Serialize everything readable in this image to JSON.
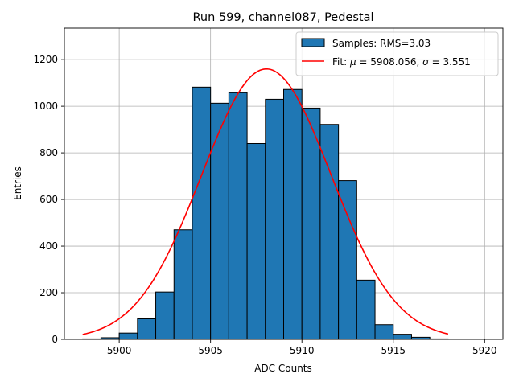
{
  "chart_data": {
    "type": "bar",
    "title": "Run 599, channel087, Pedestal",
    "xlabel": "ADC Counts",
    "ylabel": "Entries",
    "xlim": [
      5897.0,
      5921.0
    ],
    "ylim": [
      0,
      1335
    ],
    "xticks": [
      5900,
      5905,
      5910,
      5915,
      5920
    ],
    "yticks": [
      0,
      200,
      400,
      600,
      800,
      1000,
      1200
    ],
    "grid": true,
    "legend_position": "upper-right",
    "histogram": {
      "name": "Samples: RMS=3.03",
      "color": "#1f77b4",
      "bin_edges": [
        5898,
        5899,
        5900,
        5901,
        5902,
        5903,
        5904,
        5905,
        5906,
        5907,
        5908,
        5909,
        5910,
        5911,
        5912,
        5913,
        5914,
        5915,
        5916,
        5917,
        5918
      ],
      "values": [
        2,
        7,
        27,
        88,
        203,
        470,
        1082,
        1013,
        1058,
        840,
        1030,
        1072,
        992,
        922,
        681,
        254,
        63,
        22,
        9,
        2
      ]
    },
    "fit": {
      "name": "Fit: μ = 5908.056, σ = 3.551",
      "label_parts": [
        "Fit: ",
        "μ",
        " = 5908.056, ",
        "σ",
        " = 3.551"
      ],
      "color": "#ff0000",
      "mu": 5908.056,
      "sigma": 3.551,
      "amplitude": 1160,
      "x_range": [
        5898,
        5918
      ]
    }
  }
}
